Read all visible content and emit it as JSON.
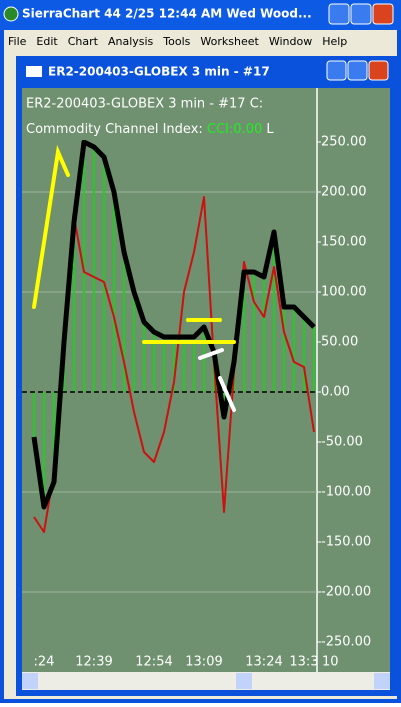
{
  "window": {
    "title": "SierraChart 44  2/25  12:44 AM Wed   Wood...",
    "menu": [
      "File",
      "Edit",
      "Chart",
      "Analysis",
      "Tools",
      "Worksheet",
      "Window",
      "Help"
    ]
  },
  "chart_window": {
    "title": "ER2-200403-GLOBEX  3 min - #17"
  },
  "chart_data": {
    "type": "line",
    "header": "ER2-200403-GLOBEX  3 min - #17  C:",
    "study_label": "Commodity Channel Index:",
    "study_value": "CCI:0.00",
    "study_tail": "L",
    "categories": [
      null,
      ":24",
      null,
      null,
      null,
      null,
      "12:39",
      null,
      null,
      null,
      null,
      null,
      "12:54",
      null,
      null,
      null,
      null,
      "13:09",
      null,
      null,
      null,
      null,
      null,
      "13:24",
      null,
      null,
      null,
      "13:3",
      null
    ],
    "x_label_tail": "10",
    "series": [
      {
        "style": "bar",
        "color": "#22cc22",
        "values": [
          -45,
          -115,
          -90,
          50,
          170,
          250,
          245,
          235,
          200,
          140,
          100,
          70,
          60,
          55,
          55,
          55,
          55,
          65,
          40,
          -25,
          30,
          120,
          120,
          115,
          160,
          85,
          85,
          75,
          65
        ]
      },
      {
        "style": "line",
        "color": "#cc1111",
        "values": [
          -125,
          -140,
          -80,
          60,
          175,
          120,
          115,
          110,
          75,
          30,
          -20,
          -60,
          -70,
          -40,
          10,
          100,
          140,
          195,
          30,
          -120,
          20,
          130,
          90,
          75,
          125,
          60,
          30,
          25,
          -40
        ]
      },
      {
        "style": "line",
        "color": "#000000",
        "width": 5,
        "values": [
          -45,
          -115,
          -90,
          50,
          170,
          250,
          245,
          235,
          200,
          140,
          100,
          70,
          60,
          55,
          55,
          55,
          55,
          65,
          40,
          -25,
          30,
          120,
          120,
          115,
          160,
          85,
          85,
          75,
          65
        ]
      }
    ],
    "ylim": [
      -250,
      250
    ],
    "yticks": [
      {
        "value": 250,
        "label": "250.00"
      },
      {
        "value": 200,
        "label": "200.00"
      },
      {
        "value": 150,
        "label": "150.00"
      },
      {
        "value": 100,
        "label": "100.00"
      },
      {
        "value": 50,
        "label": "50.00"
      },
      {
        "value": 0,
        "label": "0.00"
      },
      {
        "value": -50,
        "label": "-50.00"
      },
      {
        "value": -100,
        "label": "-100.00"
      },
      {
        "value": -150,
        "label": "-150.00"
      },
      {
        "value": -200,
        "label": "-200.00"
      },
      {
        "value": -250,
        "label": "-250.00"
      }
    ],
    "grid_values": [
      200,
      100,
      -100,
      -200
    ],
    "zero_line": 0
  }
}
